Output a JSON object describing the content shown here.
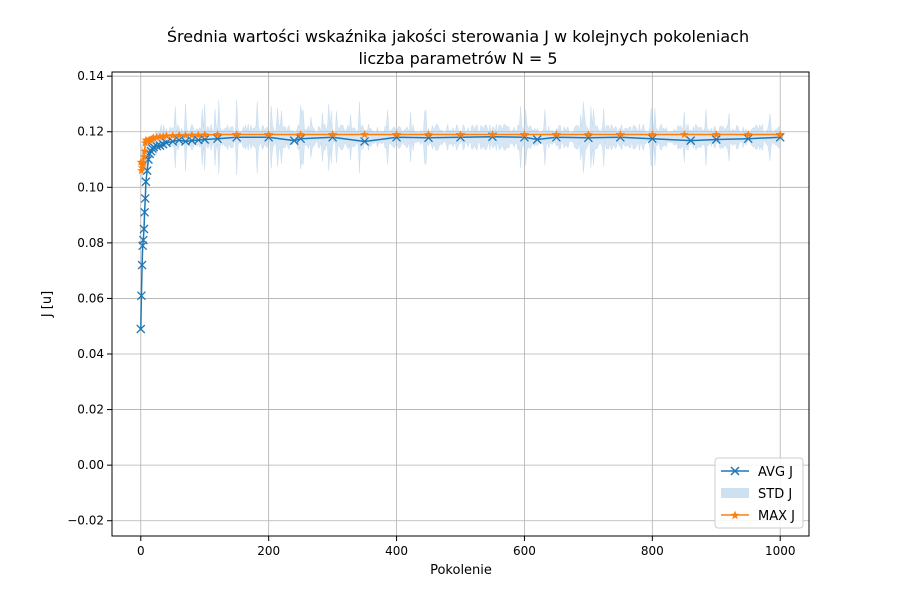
{
  "chart_data": {
    "type": "line",
    "title": "Średnia wartości wskaźnika jakości sterowania J w kolejnych pokoleniach",
    "subtitle": "liczba parametrów N = 5",
    "xlabel": "Pokolenie",
    "ylabel": "J [u]",
    "xlim": [
      -45,
      1045
    ],
    "ylim": [
      -0.0255,
      0.1415
    ],
    "x_ticks": [
      0,
      200,
      400,
      600,
      800,
      1000
    ],
    "x_tick_labels": [
      "0",
      "200",
      "400",
      "600",
      "800",
      "1000"
    ],
    "y_ticks": [
      -0.02,
      0.0,
      0.02,
      0.04,
      0.06,
      0.08,
      0.1,
      0.12,
      0.14
    ],
    "y_tick_labels": [
      "−0.02",
      "0.00",
      "0.02",
      "0.04",
      "0.06",
      "0.08",
      "0.10",
      "0.12",
      "0.14"
    ],
    "grid": true,
    "legend_position": "bottom-right",
    "legend": [
      "AVG J",
      "STD J",
      "MAX J"
    ],
    "colors": {
      "avg": "#1f77b4",
      "std": "#a6c8e6",
      "max": "#ff7f0e"
    },
    "series": [
      {
        "name": "AVG J",
        "marker": "x",
        "x": [
          0,
          1,
          2,
          3,
          4,
          5,
          6,
          7,
          8,
          10,
          12,
          14,
          16,
          18,
          20,
          25,
          30,
          35,
          40,
          50,
          60,
          70,
          80,
          90,
          100,
          120,
          150,
          200,
          240,
          250,
          300,
          350,
          400,
          450,
          500,
          550,
          600,
          620,
          650,
          700,
          750,
          800,
          860,
          900,
          950,
          1000
        ],
        "values": [
          0.049,
          0.061,
          0.072,
          0.079,
          0.081,
          0.085,
          0.091,
          0.096,
          0.102,
          0.106,
          0.11,
          0.112,
          0.113,
          0.114,
          0.1145,
          0.1148,
          0.115,
          0.1155,
          0.116,
          0.1165,
          0.117,
          0.1165,
          0.1168,
          0.117,
          0.1172,
          0.1175,
          0.118,
          0.118,
          0.1168,
          0.1175,
          0.118,
          0.1165,
          0.118,
          0.1178,
          0.118,
          0.1182,
          0.118,
          0.1172,
          0.118,
          0.1178,
          0.118,
          0.1175,
          0.1168,
          0.1172,
          0.1175,
          0.118
        ]
      },
      {
        "name": "MAX J",
        "marker": "star",
        "x": [
          0,
          1,
          2,
          3,
          4,
          5,
          6,
          7,
          8,
          10,
          12,
          14,
          16,
          18,
          20,
          25,
          30,
          35,
          40,
          50,
          60,
          70,
          80,
          90,
          100,
          120,
          150,
          200,
          250,
          300,
          350,
          400,
          450,
          500,
          550,
          600,
          650,
          700,
          750,
          800,
          850,
          900,
          950,
          1000
        ],
        "values": [
          0.109,
          0.106,
          0.107,
          0.108,
          0.109,
          0.111,
          0.113,
          0.116,
          0.117,
          0.1165,
          0.1168,
          0.117,
          0.1172,
          0.1175,
          0.1178,
          0.118,
          0.1182,
          0.1183,
          0.1185,
          0.1186,
          0.1187,
          0.1187,
          0.1188,
          0.1188,
          0.1189,
          0.119,
          0.119,
          0.119,
          0.119,
          0.119,
          0.119,
          0.119,
          0.119,
          0.119,
          0.119,
          0.119,
          0.119,
          0.119,
          0.119,
          0.119,
          0.119,
          0.119,
          0.119,
          0.119
        ]
      },
      {
        "name": "STD J",
        "band_center": 0.118,
        "band_halfwidth_typical": 0.004,
        "band_halfwidth_max": 0.014
      }
    ]
  }
}
